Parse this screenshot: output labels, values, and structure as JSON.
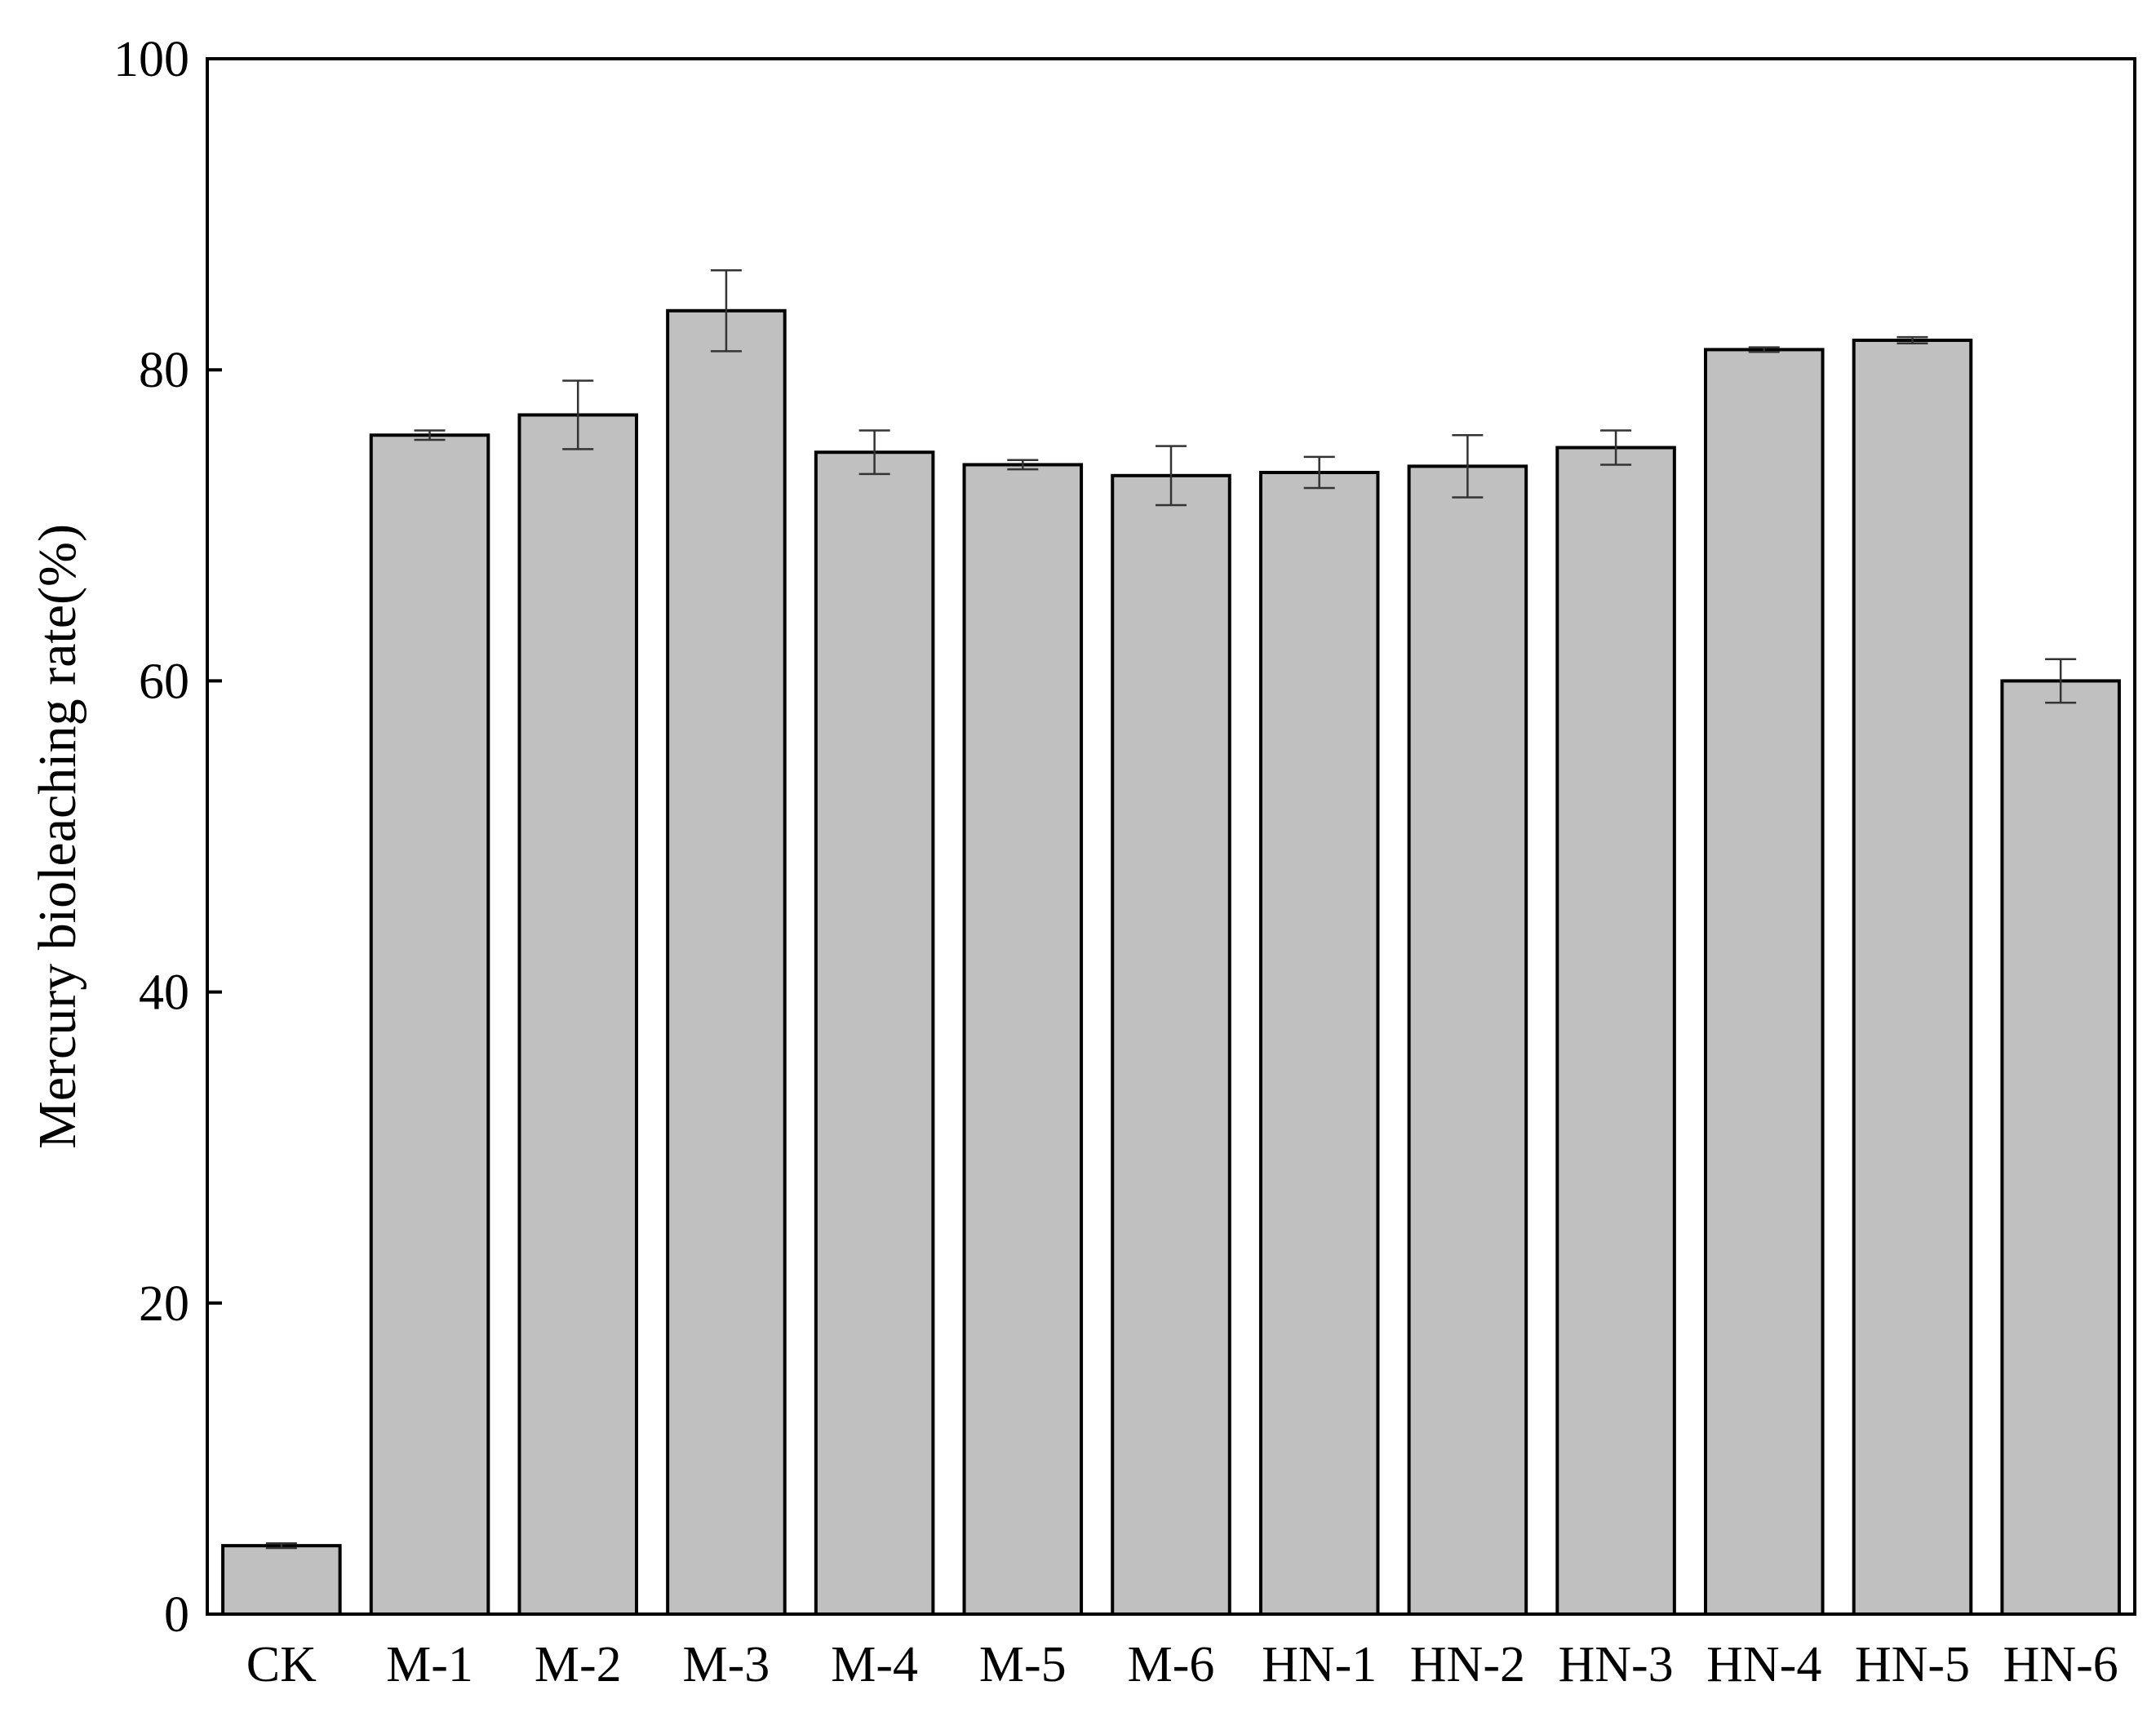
{
  "chart_data": {
    "type": "bar",
    "title": "",
    "xlabel": "",
    "ylabel": "Mercury bioleaching rate(%)",
    "ylim": [
      0,
      100
    ],
    "yticks": [
      0,
      20,
      40,
      60,
      80,
      100
    ],
    "grid": false,
    "legend": "none",
    "bar_color": "#c0c0c0",
    "edge_color": "#000000",
    "categories": [
      "CK",
      "M-1",
      "M-2",
      "M-3",
      "M-4",
      "M-5",
      "M-6",
      "HN-1",
      "HN-2",
      "HN-3",
      "HN-4",
      "HN-5",
      "HN-6"
    ],
    "values": [
      4.4,
      75.8,
      77.1,
      83.8,
      74.7,
      73.9,
      73.2,
      73.4,
      73.8,
      75.0,
      81.3,
      81.9,
      60.0
    ],
    "errors": [
      0.15,
      0.3,
      2.2,
      2.6,
      1.4,
      0.3,
      1.9,
      1.0,
      2.0,
      1.1,
      0.15,
      0.2,
      1.4
    ]
  }
}
